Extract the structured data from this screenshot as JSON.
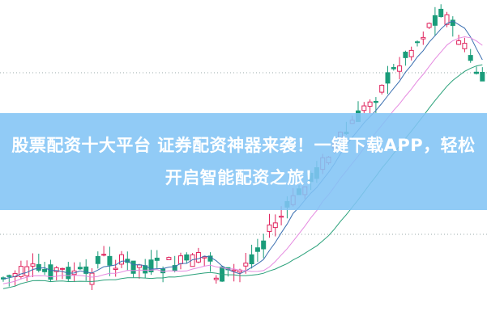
{
  "banner": {
    "headline": "股票配资十大平台 证券配资神器来袭！一键下载APP，轻松开启智能配资之旅！"
  },
  "colors": {
    "up": "#e0245e",
    "down": "#1a9c7a",
    "banner": "#82c4f5",
    "ma_short": "#3a6fb0",
    "ma_mid": "#e58ae0",
    "ma_long": "#2aa17a"
  }
}
